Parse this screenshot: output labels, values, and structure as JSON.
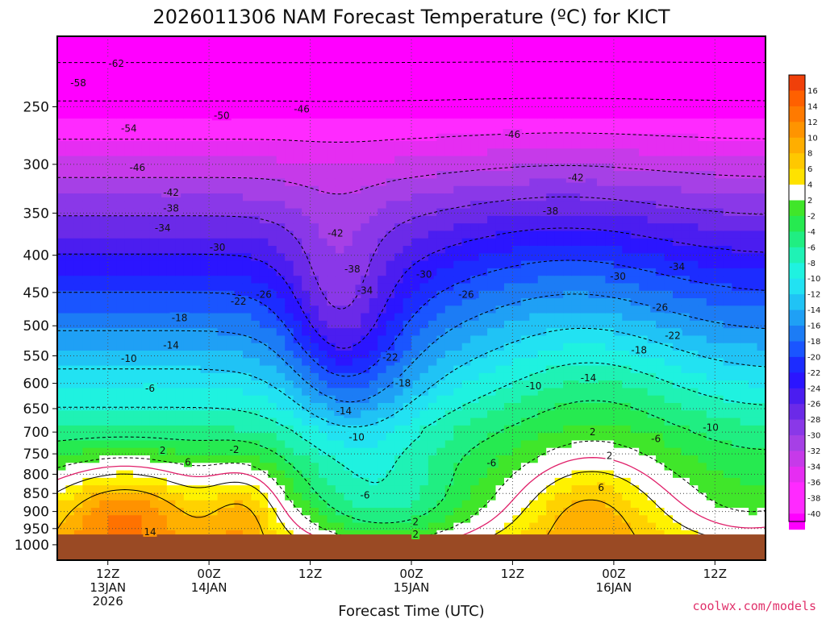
{
  "chart_data": {
    "type": "heatmap",
    "title": "2026011306 NAM Forecast Temperature (ºC) for KICT",
    "xlabel": "Forecast Time (UTC)",
    "ylabel": "",
    "y_scale": "log",
    "yaxis_pressure_hPa": [
      250,
      300,
      350,
      400,
      450,
      500,
      550,
      600,
      650,
      700,
      750,
      800,
      850,
      900,
      950,
      1000
    ],
    "ylim_hPa": [
      200,
      1050
    ],
    "x_ticks": [
      {
        "hour": 6,
        "line1": "12Z",
        "line2": "13JAN",
        "line3": "2026"
      },
      {
        "hour": 18,
        "line1": "00Z",
        "line2": "14JAN",
        "line3": ""
      },
      {
        "hour": 30,
        "line1": "12Z",
        "line2": "",
        "line3": ""
      },
      {
        "hour": 42,
        "line1": "00Z",
        "line2": "15JAN",
        "line3": ""
      },
      {
        "hour": 54,
        "line1": "12Z",
        "line2": "",
        "line3": ""
      },
      {
        "hour": 66,
        "line1": "00Z",
        "line2": "16JAN",
        "line3": ""
      },
      {
        "hour": 78,
        "line1": "12Z",
        "line2": "",
        "line3": ""
      }
    ],
    "xlim_hours": [
      0,
      84
    ],
    "grid": true,
    "colorbar": {
      "placement": "right",
      "levels": [
        16,
        14,
        12,
        10,
        8,
        6,
        4,
        2,
        -2,
        -4,
        -6,
        -8,
        -10,
        -12,
        -14,
        -16,
        -18,
        -20,
        -22,
        -24,
        -26,
        -28,
        -30,
        -32,
        -34,
        -36,
        -38,
        -40
      ],
      "labels": [
        "16",
        "14",
        "12",
        "10",
        "8",
        "6",
        "4",
        "2",
        "-2",
        "-4",
        "-6",
        "-8",
        "-10",
        "-12",
        "-14",
        "-16",
        "-18",
        "-20",
        "-22",
        "-24",
        "-26",
        "-28",
        "-30",
        "-32",
        "-34",
        "-36",
        "-38",
        "-40"
      ]
    },
    "contour_interval_C": 4,
    "freezing_line_color": "#e0206a",
    "surface_color": "#9a4a24",
    "contour_labels": [
      {
        "text": "-62",
        "hour": 7,
        "hPa": 218
      },
      {
        "text": "-58",
        "hour": 2.5,
        "hPa": 232
      },
      {
        "text": "-54",
        "hour": 8.5,
        "hPa": 268
      },
      {
        "text": "-50",
        "hour": 19.5,
        "hPa": 257
      },
      {
        "text": "-46",
        "hour": 29,
        "hPa": 252
      },
      {
        "text": "-46",
        "hour": 9.5,
        "hPa": 303
      },
      {
        "text": "-46",
        "hour": 54,
        "hPa": 273
      },
      {
        "text": "-42",
        "hour": 13.5,
        "hPa": 328
      },
      {
        "text": "-42",
        "hour": 33,
        "hPa": 373
      },
      {
        "text": "-42",
        "hour": 61.5,
        "hPa": 313
      },
      {
        "text": "-38",
        "hour": 13.5,
        "hPa": 345
      },
      {
        "text": "-38",
        "hour": 35,
        "hPa": 418
      },
      {
        "text": "-38",
        "hour": 58.5,
        "hPa": 348
      },
      {
        "text": "-34",
        "hour": 12.5,
        "hPa": 367
      },
      {
        "text": "-34",
        "hour": 36.5,
        "hPa": 447
      },
      {
        "text": "-34",
        "hour": 73.5,
        "hPa": 415
      },
      {
        "text": "-30",
        "hour": 19,
        "hPa": 390
      },
      {
        "text": "-30",
        "hour": 43.5,
        "hPa": 425
      },
      {
        "text": "-30",
        "hour": 66.5,
        "hPa": 428
      },
      {
        "text": "-26",
        "hour": 24.5,
        "hPa": 453
      },
      {
        "text": "-26",
        "hour": 48.5,
        "hPa": 453
      },
      {
        "text": "-26",
        "hour": 71.5,
        "hPa": 472
      },
      {
        "text": "-22",
        "hour": 21.5,
        "hPa": 463
      },
      {
        "text": "-22",
        "hour": 39.5,
        "hPa": 553
      },
      {
        "text": "-22",
        "hour": 73,
        "hPa": 516
      },
      {
        "text": "-18",
        "hour": 14.5,
        "hPa": 488
      },
      {
        "text": "-18",
        "hour": 41,
        "hPa": 600
      },
      {
        "text": "-18",
        "hour": 69,
        "hPa": 540
      },
      {
        "text": "-14",
        "hour": 13.5,
        "hPa": 532
      },
      {
        "text": "-14",
        "hour": 34,
        "hPa": 655
      },
      {
        "text": "-14",
        "hour": 63,
        "hPa": 590
      },
      {
        "text": "-10",
        "hour": 8.5,
        "hPa": 555
      },
      {
        "text": "-10",
        "hour": 35.5,
        "hPa": 712
      },
      {
        "text": "-10",
        "hour": 56.5,
        "hPa": 605
      },
      {
        "text": "-10",
        "hour": 77.5,
        "hPa": 690
      },
      {
        "text": "-6",
        "hour": 11,
        "hPa": 610
      },
      {
        "text": "-6",
        "hour": 36.5,
        "hPa": 855
      },
      {
        "text": "-6",
        "hour": 51.5,
        "hPa": 772
      },
      {
        "text": "-6",
        "hour": 71,
        "hPa": 715
      },
      {
        "text": "-2",
        "hour": 21,
        "hPa": 740
      },
      {
        "text": "2",
        "hour": 12.5,
        "hPa": 742
      },
      {
        "text": "2",
        "hour": 42.5,
        "hPa": 930
      },
      {
        "text": "2",
        "hour": 42.5,
        "hPa": 968
      },
      {
        "text": "2",
        "hour": 63.5,
        "hPa": 700
      },
      {
        "text": "2",
        "hour": 65.5,
        "hPa": 755
      },
      {
        "text": "6",
        "hour": 15.5,
        "hPa": 770
      },
      {
        "text": "6",
        "hour": 64.5,
        "hPa": 835
      },
      {
        "text": "14",
        "hour": 11,
        "hPa": 960
      }
    ]
  },
  "credit": "coolwx.com/models"
}
